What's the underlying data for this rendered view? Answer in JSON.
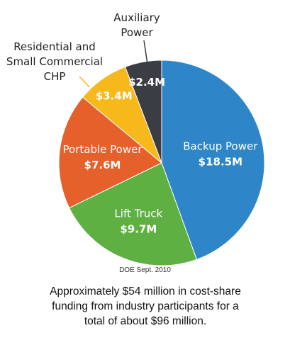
{
  "chart_data": {
    "type": "pie",
    "unit": "$M",
    "slices": [
      {
        "label": "Backup Power",
        "value": 18.5,
        "value_label": "$18.5M",
        "color": "#2e86c8"
      },
      {
        "label": "Lift Truck",
        "value": 9.7,
        "value_label": "$9.7M",
        "color": "#5fb043"
      },
      {
        "label": "Portable Power",
        "value": 7.6,
        "value_label": "$7.6M",
        "color": "#e5602a"
      },
      {
        "label": "Residential and Small Commercial CHP",
        "value": 3.4,
        "value_label": "$3.4M",
        "color": "#f7b81c"
      },
      {
        "label": "Auxiliary Power",
        "value": 2.4,
        "value_label": "$2.4M",
        "color": "#3a3d43"
      }
    ]
  },
  "external_labels": {
    "auxiliary": [
      "Auxiliary",
      "Power"
    ],
    "residential": [
      "Residential and",
      "Small Commercial",
      "CHP"
    ]
  },
  "source_note": "DOE Sept. 2010",
  "caption": [
    "Approximately $54 million in cost-share",
    "funding from industry participants for a",
    "total of about $96 million."
  ]
}
